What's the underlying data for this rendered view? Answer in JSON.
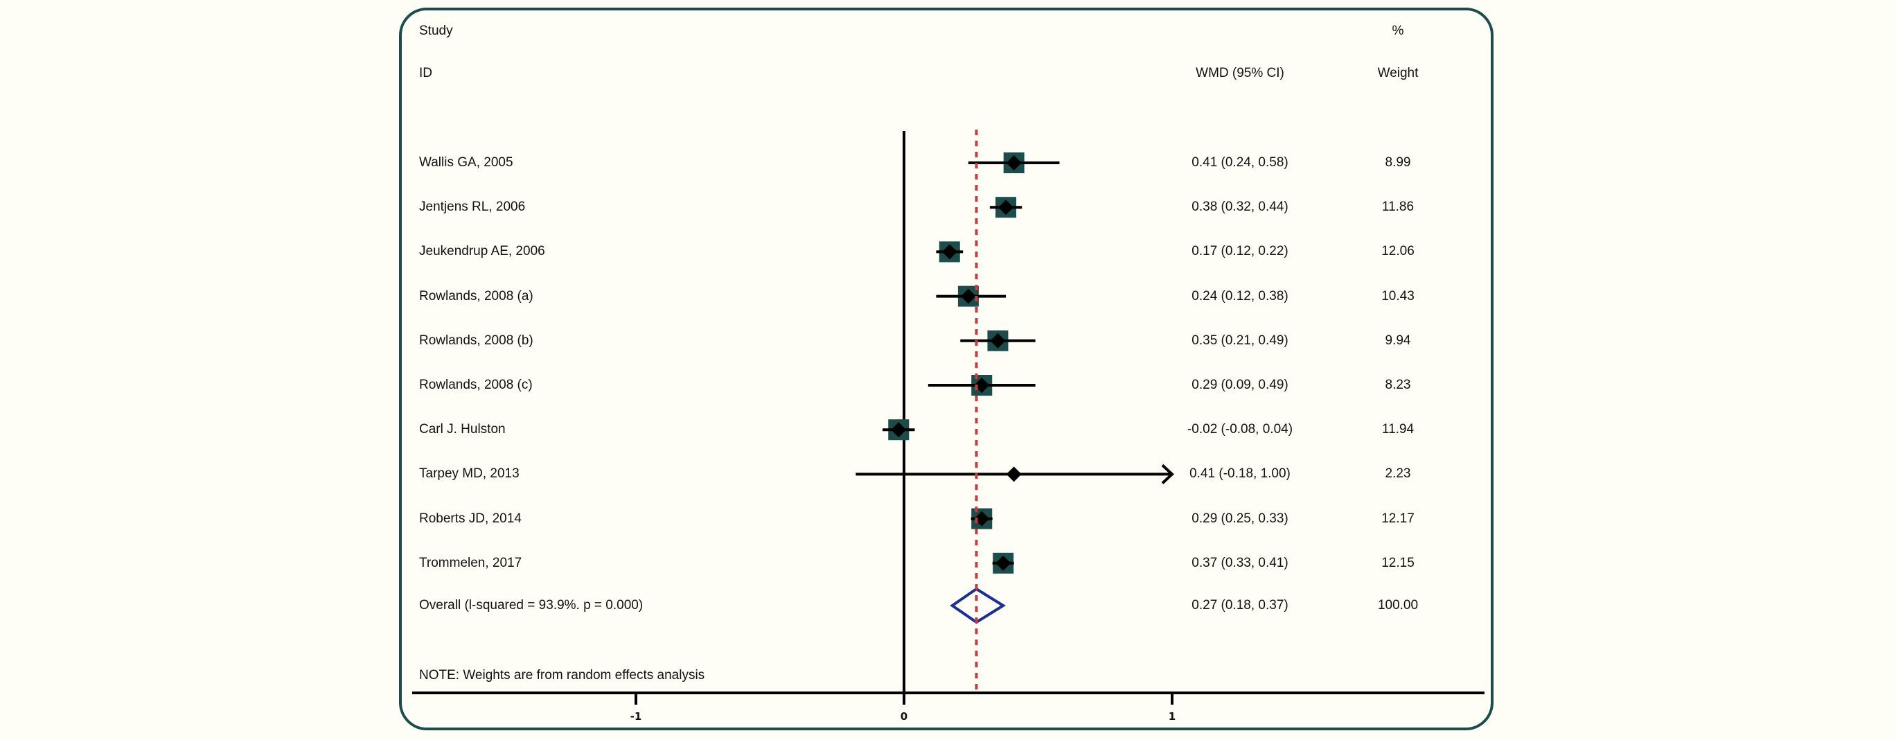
{
  "header": {
    "study": "Study",
    "id": "ID",
    "wmd": "WMD (95% CI)",
    "percent": "%",
    "weight": "Weight"
  },
  "note": "NOTE: Weights are from random effects analysis",
  "colors": {
    "frame": "#1b4d4a",
    "square": "#1b4d4a",
    "marker": "#000000",
    "ref_line": "#c83c3c",
    "overall_diamond": "#1a2e9a"
  },
  "chart_data": {
    "type": "forest",
    "xlabel": "",
    "xlim": [
      -1.9,
      2.2
    ],
    "xticks": [
      {
        "value": -1,
        "label": "-1"
      },
      {
        "value": 0,
        "label": "0"
      },
      {
        "value": 1,
        "label": "1"
      }
    ],
    "null_line": 0,
    "overall_line": 0.27,
    "studies": [
      {
        "name": "Wallis GA, 2005",
        "est": 0.41,
        "lo": 0.24,
        "hi": 0.58,
        "ci_text": "0.41 (0.24, 0.58)",
        "weight": "8.99"
      },
      {
        "name": "Jentjens RL, 2006",
        "est": 0.38,
        "lo": 0.32,
        "hi": 0.44,
        "ci_text": "0.38 (0.32, 0.44)",
        "weight": "11.86"
      },
      {
        "name": "Jeukendrup AE, 2006",
        "est": 0.17,
        "lo": 0.12,
        "hi": 0.22,
        "ci_text": "0.17 (0.12, 0.22)",
        "weight": "12.06"
      },
      {
        "name": "Rowlands, 2008 (a)",
        "est": 0.24,
        "lo": 0.12,
        "hi": 0.38,
        "ci_text": "0.24 (0.12, 0.38)",
        "weight": "10.43"
      },
      {
        "name": "Rowlands, 2008 (b)",
        "est": 0.35,
        "lo": 0.21,
        "hi": 0.49,
        "ci_text": "0.35 (0.21, 0.49)",
        "weight": "9.94"
      },
      {
        "name": "Rowlands, 2008 (c)",
        "est": 0.29,
        "lo": 0.09,
        "hi": 0.49,
        "ci_text": "0.29 (0.09, 0.49)",
        "weight": "8.23"
      },
      {
        "name": "Carl J. Hulston",
        "est": -0.02,
        "lo": -0.08,
        "hi": 0.04,
        "ci_text": "-0.02 (-0.08, 0.04)",
        "weight": "11.94"
      },
      {
        "name": "Tarpey MD, 2013",
        "est": 0.41,
        "lo": -0.18,
        "hi": 1.0,
        "ci_text": "0.41 (-0.18, 1.00)",
        "weight": "2.23",
        "arrow_right": true
      },
      {
        "name": "Roberts JD, 2014",
        "est": 0.29,
        "lo": 0.25,
        "hi": 0.33,
        "ci_text": "0.29 (0.25, 0.33)",
        "weight": "12.17"
      },
      {
        "name": "Trommelen, 2017",
        "est": 0.37,
        "lo": 0.33,
        "hi": 0.41,
        "ci_text": "0.37 (0.33, 0.41)",
        "weight": "12.15"
      }
    ],
    "overall": {
      "name": "Overall (l-squared = 93.9%. p = 0.000)",
      "est": 0.27,
      "lo": 0.18,
      "hi": 0.37,
      "ci_text": "0.27 (0.18, 0.37)",
      "weight": "100.00"
    }
  }
}
